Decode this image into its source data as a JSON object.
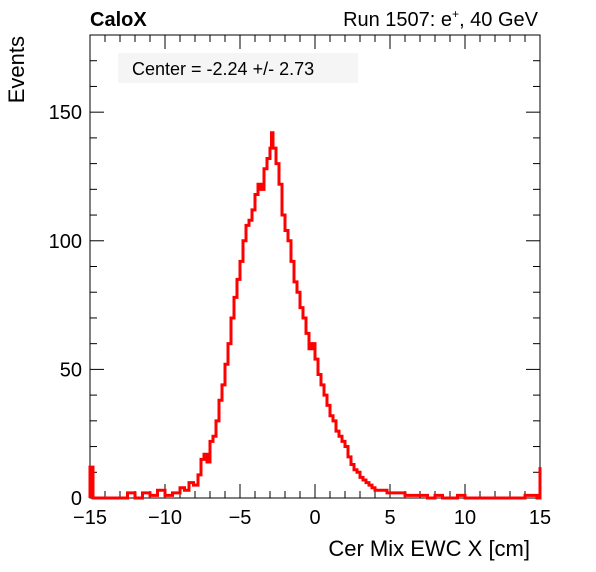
{
  "header": {
    "left_label": "CaloX",
    "run_label_prefix": "Run 1507: e",
    "run_label_sup": "+",
    "run_label_suffix": ", 40 GeV"
  },
  "annotation": "Center = -2.24 +/- 2.73",
  "chart_data": {
    "type": "histogram",
    "xlabel": "Cer Mix EWC X [cm]",
    "ylabel": "Events",
    "xlim": [
      -15,
      15
    ],
    "ylim": [
      0,
      180
    ],
    "x_ticks": [
      -15,
      -10,
      -5,
      0,
      5,
      10,
      15
    ],
    "x_tick_labels": [
      "−15",
      "−10",
      "−5",
      "0",
      "5",
      "10",
      "15"
    ],
    "y_ticks": [
      0,
      50,
      100,
      150
    ],
    "y_tick_labels": [
      "0",
      "50",
      "100",
      "150"
    ],
    "line_color": "#ff0000",
    "points": [
      [
        -15.0,
        12
      ],
      [
        -14.8,
        0
      ],
      [
        -13.0,
        0
      ],
      [
        -12.5,
        2
      ],
      [
        -12.0,
        0
      ],
      [
        -11.5,
        2
      ],
      [
        -11.0,
        1
      ],
      [
        -10.5,
        3
      ],
      [
        -10.0,
        1
      ],
      [
        -9.5,
        2
      ],
      [
        -9.0,
        4
      ],
      [
        -8.7,
        3
      ],
      [
        -8.4,
        6
      ],
      [
        -8.1,
        5
      ],
      [
        -7.8,
        9
      ],
      [
        -7.6,
        15
      ],
      [
        -7.4,
        17
      ],
      [
        -7.2,
        14
      ],
      [
        -7.0,
        22
      ],
      [
        -6.8,
        24
      ],
      [
        -6.6,
        30
      ],
      [
        -6.4,
        38
      ],
      [
        -6.2,
        44
      ],
      [
        -6.0,
        52
      ],
      [
        -5.8,
        60
      ],
      [
        -5.6,
        70
      ],
      [
        -5.4,
        78
      ],
      [
        -5.2,
        85
      ],
      [
        -5.0,
        92
      ],
      [
        -4.8,
        100
      ],
      [
        -4.6,
        106
      ],
      [
        -4.4,
        108
      ],
      [
        -4.2,
        112
      ],
      [
        -4.0,
        118
      ],
      [
        -3.8,
        122
      ],
      [
        -3.6,
        120
      ],
      [
        -3.4,
        128
      ],
      [
        -3.2,
        132
      ],
      [
        -3.0,
        136
      ],
      [
        -2.9,
        142
      ],
      [
        -2.8,
        136
      ],
      [
        -2.6,
        130
      ],
      [
        -2.4,
        122
      ],
      [
        -2.2,
        110
      ],
      [
        -2.0,
        104
      ],
      [
        -1.8,
        100
      ],
      [
        -1.6,
        92
      ],
      [
        -1.4,
        84
      ],
      [
        -1.2,
        80
      ],
      [
        -1.0,
        74
      ],
      [
        -0.8,
        70
      ],
      [
        -0.6,
        64
      ],
      [
        -0.4,
        58
      ],
      [
        -0.2,
        60
      ],
      [
        0.0,
        54
      ],
      [
        0.2,
        48
      ],
      [
        0.4,
        44
      ],
      [
        0.6,
        40
      ],
      [
        0.8,
        36
      ],
      [
        1.0,
        32
      ],
      [
        1.2,
        30
      ],
      [
        1.4,
        26
      ],
      [
        1.6,
        24
      ],
      [
        1.8,
        22
      ],
      [
        2.0,
        20
      ],
      [
        2.2,
        16
      ],
      [
        2.4,
        13
      ],
      [
        2.6,
        11
      ],
      [
        2.8,
        10
      ],
      [
        3.0,
        8
      ],
      [
        3.2,
        7
      ],
      [
        3.4,
        6
      ],
      [
        3.6,
        5
      ],
      [
        3.8,
        4
      ],
      [
        4.0,
        3
      ],
      [
        4.4,
        3
      ],
      [
        4.8,
        2
      ],
      [
        5.2,
        2
      ],
      [
        5.6,
        2
      ],
      [
        6.0,
        1
      ],
      [
        6.5,
        1
      ],
      [
        7.0,
        1
      ],
      [
        7.5,
        0
      ],
      [
        8.0,
        1
      ],
      [
        8.5,
        0
      ],
      [
        9.0,
        0
      ],
      [
        9.5,
        1
      ],
      [
        10.0,
        0
      ],
      [
        11.0,
        0
      ],
      [
        12.0,
        0
      ],
      [
        13.0,
        0
      ],
      [
        14.0,
        1
      ],
      [
        14.8,
        0
      ],
      [
        15.0,
        12
      ]
    ]
  }
}
